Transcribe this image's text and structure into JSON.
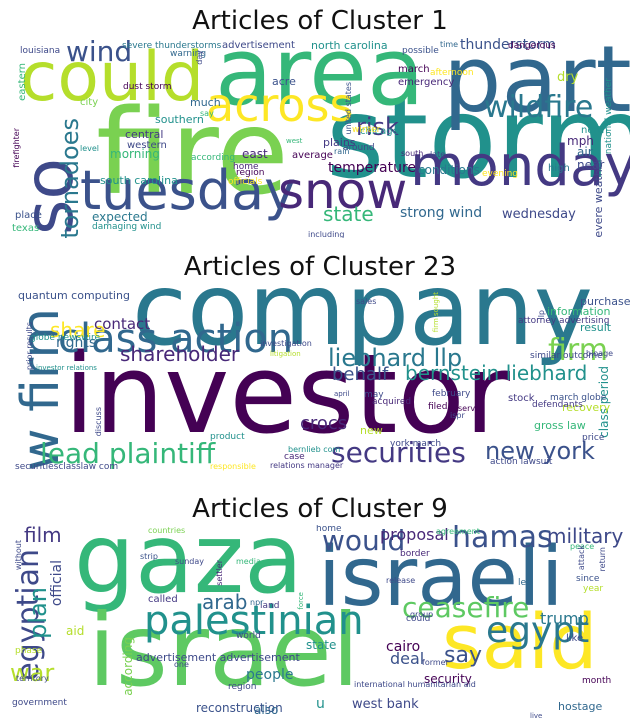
{
  "clusters": [
    {
      "title": "Articles of Cluster 1",
      "words": [
        {
          "t": "storm",
          "c": "#21918c"
        },
        {
          "t": "fire",
          "c": "#7ad151"
        },
        {
          "t": "area",
          "c": "#35b779"
        },
        {
          "t": "part",
          "c": "#31688e"
        },
        {
          "t": "could",
          "c": "#b5de2b"
        },
        {
          "t": "monday",
          "c": "#443983"
        },
        {
          "t": "tuesday",
          "c": "#3b528b"
        },
        {
          "t": "snow",
          "c": "#482878"
        },
        {
          "t": "also",
          "c": "#3e4989"
        },
        {
          "t": "across",
          "c": "#fde725"
        },
        {
          "t": "wildfire",
          "c": "#2a788e"
        },
        {
          "t": "wind",
          "c": "#3b528b"
        },
        {
          "t": "tornadoes",
          "c": "#2a788e"
        },
        {
          "t": "risk",
          "c": "#443983"
        },
        {
          "t": "state",
          "c": "#35b779"
        },
        {
          "t": "strong wind",
          "c": "#31688e"
        },
        {
          "t": "wednesday",
          "c": "#3e4989"
        },
        {
          "t": "temperature",
          "c": "#440154"
        },
        {
          "t": "thunderstorm",
          "c": "#3b528b"
        },
        {
          "t": "conditions",
          "c": "#2a788e"
        },
        {
          "t": "morning",
          "c": "#35b779"
        },
        {
          "t": "expected",
          "c": "#2a788e"
        },
        {
          "t": "south carolina",
          "c": "#21918c"
        },
        {
          "t": "north carolina",
          "c": "#21918c"
        },
        {
          "t": "advertisement",
          "c": "#3e4989"
        },
        {
          "t": "march",
          "c": "#440154"
        },
        {
          "t": "emergency",
          "c": "#482878"
        },
        {
          "t": "plains",
          "c": "#443983"
        },
        {
          "t": "east",
          "c": "#482878"
        },
        {
          "t": "average",
          "c": "#440154"
        },
        {
          "t": "mph",
          "c": "#482878"
        },
        {
          "t": "near",
          "c": "#3e4989"
        },
        {
          "t": "air",
          "c": "#31688e"
        },
        {
          "t": "north",
          "c": "#21918c"
        },
        {
          "t": "high",
          "c": "#2a788e"
        },
        {
          "t": "dry",
          "c": "#b5de2b"
        },
        {
          "t": "acre",
          "c": "#3b528b"
        },
        {
          "t": "much",
          "c": "#31688e"
        },
        {
          "t": "dust storm",
          "c": "#440154"
        },
        {
          "t": "city",
          "c": "#7ad151"
        },
        {
          "t": "southern",
          "c": "#21918c"
        },
        {
          "t": "central",
          "c": "#443983"
        },
        {
          "t": "western",
          "c": "#3e4989"
        },
        {
          "t": "according",
          "c": "#35b779"
        },
        {
          "t": "chicago",
          "c": "#21918c"
        },
        {
          "t": "severe weather",
          "c": "#3e4989"
        },
        {
          "t": "severe thunderstorms",
          "c": "#2a788e"
        },
        {
          "t": "damaging wind",
          "c": "#21918c"
        },
        {
          "t": "including",
          "c": "#3e4989"
        },
        {
          "t": "texas",
          "c": "#35b779"
        },
        {
          "t": "place",
          "c": "#3b528b"
        },
        {
          "t": "firefighter",
          "c": "#440154"
        },
        {
          "t": "eastern",
          "c": "#35b779"
        },
        {
          "t": "louisiana",
          "c": "#3e4989"
        },
        {
          "t": "warning",
          "c": "#31688e"
        },
        {
          "t": "possible",
          "c": "#3b528b"
        },
        {
          "t": "dangerous",
          "c": "#440154"
        },
        {
          "t": "national weather",
          "c": "#21918c"
        },
        {
          "t": "winter",
          "c": "#fde725"
        },
        {
          "t": "evening",
          "c": "#fde725"
        },
        {
          "t": "officials",
          "c": "#fde725"
        },
        {
          "t": "afternoon",
          "c": "#fde725"
        },
        {
          "t": "around",
          "c": "#3e4989"
        },
        {
          "t": "home",
          "c": "#482878"
        },
        {
          "t": "region",
          "c": "#440154"
        },
        {
          "t": "rain",
          "c": "#31688e"
        },
        {
          "t": "south",
          "c": "#482878"
        },
        {
          "t": "late",
          "c": "#3e4989"
        },
        {
          "t": "level",
          "c": "#21918c"
        },
        {
          "t": "say",
          "c": "#35b779"
        },
        {
          "t": "day",
          "c": "#3e4989"
        },
        {
          "t": "time",
          "c": "#31688e"
        },
        {
          "t": "united states",
          "c": "#3b528b"
        },
        {
          "t": "west",
          "c": "#35b779"
        }
      ]
    },
    {
      "title": "Articles of Cluster 23",
      "words": [
        {
          "t": "company",
          "c": "#2a788e"
        },
        {
          "t": "investor",
          "c": "#440154"
        },
        {
          "t": "class action",
          "c": "#31688e"
        },
        {
          "t": "law firm",
          "c": "#31688e"
        },
        {
          "t": "firm",
          "c": "#7ad151"
        },
        {
          "t": "shareholder",
          "c": "#482878"
        },
        {
          "t": "liebhard llp",
          "c": "#2a788e"
        },
        {
          "t": "bernstein liebhard",
          "c": "#21918c"
        },
        {
          "t": "lead plaintiff",
          "c": "#35b779"
        },
        {
          "t": "securities",
          "c": "#443983"
        },
        {
          "t": "new york",
          "c": "#3b528b"
        },
        {
          "t": "behalf",
          "c": "#3b528b"
        },
        {
          "t": "crocs",
          "c": "#482878"
        },
        {
          "t": "share",
          "c": "#fde725"
        },
        {
          "t": "contact",
          "c": "#482878"
        },
        {
          "t": "rights",
          "c": "#31688e"
        },
        {
          "t": "quantum computing",
          "c": "#3b528b"
        },
        {
          "t": "globe newswire",
          "c": "#21918c"
        },
        {
          "t": "investor relations",
          "c": "#21918c"
        },
        {
          "t": "purchased",
          "c": "#3b528b"
        },
        {
          "t": "information",
          "c": "#35b779"
        },
        {
          "t": "attorney advertising",
          "c": "#443983"
        },
        {
          "t": "result",
          "c": "#21918c"
        },
        {
          "t": "class period",
          "c": "#21918c"
        },
        {
          "t": "gross law",
          "c": "#35b779"
        },
        {
          "t": "recovery",
          "c": "#b5de2b"
        },
        {
          "t": "march globe",
          "c": "#3b528b"
        },
        {
          "t": "defendants",
          "c": "#443983"
        },
        {
          "t": "stock",
          "c": "#443983"
        },
        {
          "t": "price",
          "c": "#3e4989"
        },
        {
          "t": "discuss",
          "c": "#3e4989"
        },
        {
          "t": "product",
          "c": "#21918c"
        },
        {
          "t": "case",
          "c": "#482878"
        },
        {
          "t": "acquired",
          "c": "#482878"
        },
        {
          "t": "filed",
          "c": "#440154"
        },
        {
          "t": "may",
          "c": "#3e4989"
        },
        {
          "t": "february",
          "c": "#3e4989"
        },
        {
          "t": "investigation",
          "c": "#3e4989"
        },
        {
          "t": "litigation",
          "c": "#b5de2b"
        },
        {
          "t": "serve",
          "c": "#440154"
        },
        {
          "t": "new",
          "c": "#b5de2b"
        },
        {
          "t": "york march",
          "c": "#3e4989"
        },
        {
          "t": "action lawsuit",
          "c": "#3e4989"
        },
        {
          "t": "securitiesclasslaw com",
          "c": "#3e4989"
        },
        {
          "t": "responsible",
          "c": "#fde725"
        },
        {
          "t": "relations manager",
          "c": "#443983"
        },
        {
          "t": "bernlieb com",
          "c": "#21918c"
        },
        {
          "t": "similar outcome",
          "c": "#3e4989"
        },
        {
          "t": "bioage",
          "c": "#3e4989"
        },
        {
          "t": "llp",
          "c": "#3e4989"
        },
        {
          "t": "sales",
          "c": "#3e4989"
        },
        {
          "t": "april",
          "c": "#3e4989"
        },
        {
          "t": "prior results",
          "c": "#3e4989"
        },
        {
          "t": "ispr",
          "c": "#3e4989"
        },
        {
          "t": "firm sought",
          "c": "#b5de2b"
        }
      ]
    },
    {
      "title": "Articles of Cluster 9",
      "words": [
        {
          "t": "gaza",
          "c": "#35b779"
        },
        {
          "t": "israel",
          "c": "#5ec962"
        },
        {
          "t": "israeli",
          "c": "#31688e"
        },
        {
          "t": "said",
          "c": "#fde725"
        },
        {
          "t": "palestinian",
          "c": "#21918c"
        },
        {
          "t": "hamas",
          "c": "#3b528b"
        },
        {
          "t": "egypt",
          "c": "#2a788e"
        },
        {
          "t": "ceasefire",
          "c": "#5ec962"
        },
        {
          "t": "would",
          "c": "#3b528b"
        },
        {
          "t": "egyptian",
          "c": "#3e4989"
        },
        {
          "t": "plan",
          "c": "#21918c"
        },
        {
          "t": "war",
          "c": "#b5de2b"
        },
        {
          "t": "film",
          "c": "#443983"
        },
        {
          "t": "military",
          "c": "#3e4989"
        },
        {
          "t": "proposal",
          "c": "#482878"
        },
        {
          "t": "arab",
          "c": "#31688e"
        },
        {
          "t": "say",
          "c": "#3b528b"
        },
        {
          "t": "trump",
          "c": "#2a788e"
        },
        {
          "t": "deal",
          "c": "#3b528b"
        },
        {
          "t": "cairo",
          "c": "#440154"
        },
        {
          "t": "security",
          "c": "#440154"
        },
        {
          "t": "west bank",
          "c": "#3e4989"
        },
        {
          "t": "reconstruction",
          "c": "#3b528b"
        },
        {
          "t": "also",
          "c": "#31688e"
        },
        {
          "t": "u",
          "c": "#21918c"
        },
        {
          "t": "people",
          "c": "#2a788e"
        },
        {
          "t": "state",
          "c": "#21918c"
        },
        {
          "t": "aid",
          "c": "#b5de2b"
        },
        {
          "t": "official",
          "c": "#3e4989"
        },
        {
          "t": "according",
          "c": "#7ad151"
        },
        {
          "t": "advertisement advertisement",
          "c": "#3e4989"
        },
        {
          "t": "called",
          "c": "#443983"
        },
        {
          "t": "land",
          "c": "#443983"
        },
        {
          "t": "npr",
          "c": "#31688e"
        },
        {
          "t": "home",
          "c": "#3b528b"
        },
        {
          "t": "region",
          "c": "#3e4989"
        },
        {
          "t": "international humanitarian aid",
          "c": "#3e4989"
        },
        {
          "t": "month",
          "c": "#440154"
        },
        {
          "t": "hostage",
          "c": "#31688e"
        },
        {
          "t": "like",
          "c": "#3e4989"
        },
        {
          "t": "former",
          "c": "#3e4989"
        },
        {
          "t": "since",
          "c": "#3b528b"
        },
        {
          "t": "year",
          "c": "#b5de2b"
        },
        {
          "t": "lee",
          "c": "#31688e"
        },
        {
          "t": "group",
          "c": "#3e4989"
        },
        {
          "t": "border",
          "c": "#482878"
        },
        {
          "t": "agreement",
          "c": "#35b779"
        },
        {
          "t": "peace",
          "c": "#35b779"
        },
        {
          "t": "attack",
          "c": "#3e4989"
        },
        {
          "t": "return",
          "c": "#3e4989"
        },
        {
          "t": "countries",
          "c": "#7ad151"
        },
        {
          "t": "strip",
          "c": "#3b528b"
        },
        {
          "t": "sunday",
          "c": "#3e4989"
        },
        {
          "t": "media",
          "c": "#35b779"
        },
        {
          "t": "settler",
          "c": "#482878"
        },
        {
          "t": "without",
          "c": "#3e4989"
        },
        {
          "t": "phase",
          "c": "#b5de2b"
        },
        {
          "t": "territory",
          "c": "#3e4989"
        },
        {
          "t": "government",
          "c": "#3e4989"
        },
        {
          "t": "one",
          "c": "#3e4989"
        },
        {
          "t": "world",
          "c": "#3e4989"
        },
        {
          "t": "could",
          "c": "#3e4989"
        },
        {
          "t": "release",
          "c": "#3e4989"
        },
        {
          "t": "force",
          "c": "#35b779"
        },
        {
          "t": "live",
          "c": "#3e4989"
        }
      ]
    }
  ]
}
